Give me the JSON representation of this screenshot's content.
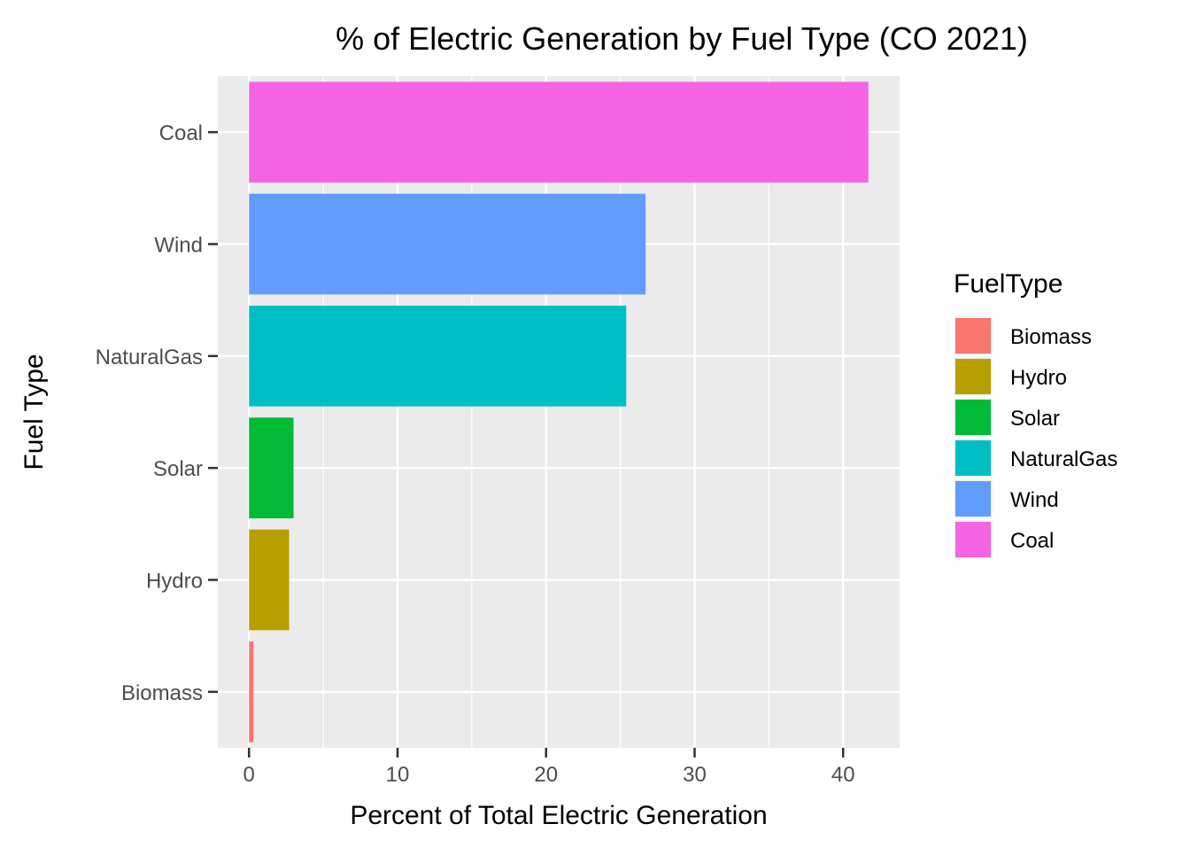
{
  "chart_data": {
    "type": "bar",
    "orientation": "horizontal",
    "title": "% of Electric Generation by Fuel Type (CO 2021)",
    "xlabel": "Percent of Total Electric Generation",
    "ylabel": "Fuel Type",
    "categories": [
      "Biomass",
      "Hydro",
      "Solar",
      "NaturalGas",
      "Wind",
      "Coal"
    ],
    "values": [
      0.3,
      2.7,
      3.0,
      25.4,
      26.7,
      41.7
    ],
    "colors": [
      "#F8766D",
      "#B79F00",
      "#00BA38",
      "#00BFC4",
      "#619CFF",
      "#F564E3"
    ],
    "xlim": [
      -2.1,
      43.8
    ],
    "xticks": [
      0,
      10,
      20,
      30,
      40
    ],
    "xtick_labels": [
      "0",
      "10",
      "20",
      "30",
      "40"
    ],
    "grid": true,
    "panel_background": "#EBEBEB",
    "legend": {
      "title": "FuelType",
      "position": "right",
      "entries": [
        "Biomass",
        "Hydro",
        "Solar",
        "NaturalGas",
        "Wind",
        "Coal"
      ]
    }
  }
}
